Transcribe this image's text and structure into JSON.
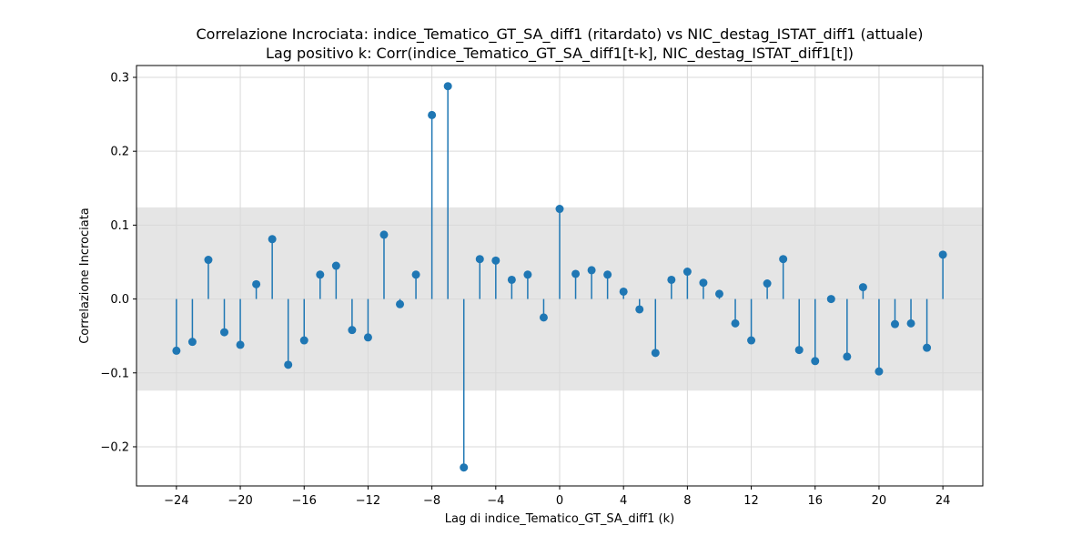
{
  "chart_data": {
    "type": "stem",
    "title": "Correlazione Incrociata: indice_Tematico_GT_SA_diff1 (ritardato) vs NIC_destag_ISTAT_diff1 (attuale)",
    "subtitle": "Lag positivo k: Corr(indice_Tematico_GT_SA_diff1[t-k], NIC_destag_ISTAT_diff1[t])",
    "xlabel": "Lag di indice_Tematico_GT_SA_diff1 (k)",
    "ylabel": "Correlazione Incrociata",
    "xlim": [
      -26.5,
      26.5
    ],
    "ylim": [
      -0.253,
      0.316
    ],
    "xticks": [
      -24,
      -20,
      -16,
      -12,
      -8,
      -4,
      0,
      4,
      8,
      12,
      16,
      20,
      24
    ],
    "yticks": [
      -0.2,
      -0.1,
      0.0,
      0.1,
      0.2,
      0.3
    ],
    "ytick_labels": [
      "−0.2",
      "−0.1",
      "0.0",
      "0.1",
      "0.2",
      "0.3"
    ],
    "xtick_labels": [
      "−24",
      "−20",
      "−16",
      "−12",
      "−8",
      "−4",
      "0",
      "4",
      "8",
      "12",
      "16",
      "20",
      "24"
    ],
    "confidence_band": [
      -0.124,
      0.124
    ],
    "grid": true,
    "colors": {
      "stem": "#1f77b4",
      "band": "#e5e5e5",
      "grid": "#d9d9d9"
    },
    "x": [
      -24,
      -23,
      -22,
      -21,
      -20,
      -19,
      -18,
      -17,
      -16,
      -15,
      -14,
      -13,
      -12,
      -11,
      -10,
      -9,
      -8,
      -7,
      -6,
      -5,
      -4,
      -3,
      -2,
      -1,
      0,
      1,
      2,
      3,
      4,
      5,
      6,
      7,
      8,
      9,
      10,
      11,
      12,
      13,
      14,
      15,
      16,
      17,
      18,
      19,
      20,
      21,
      22,
      23,
      24
    ],
    "values": [
      -0.07,
      -0.058,
      0.053,
      -0.045,
      -0.062,
      0.02,
      0.081,
      -0.089,
      -0.056,
      0.033,
      0.045,
      -0.042,
      -0.052,
      0.087,
      -0.007,
      0.033,
      0.249,
      0.288,
      -0.228,
      0.054,
      0.052,
      0.026,
      0.033,
      -0.025,
      0.122,
      0.034,
      0.039,
      0.033,
      0.01,
      -0.014,
      -0.073,
      0.026,
      0.037,
      0.022,
      0.007,
      -0.033,
      -0.056,
      0.021,
      0.054,
      -0.069,
      -0.084,
      0.0,
      -0.078,
      0.016,
      -0.098,
      -0.034,
      -0.033,
      -0.066,
      0.06
    ]
  }
}
